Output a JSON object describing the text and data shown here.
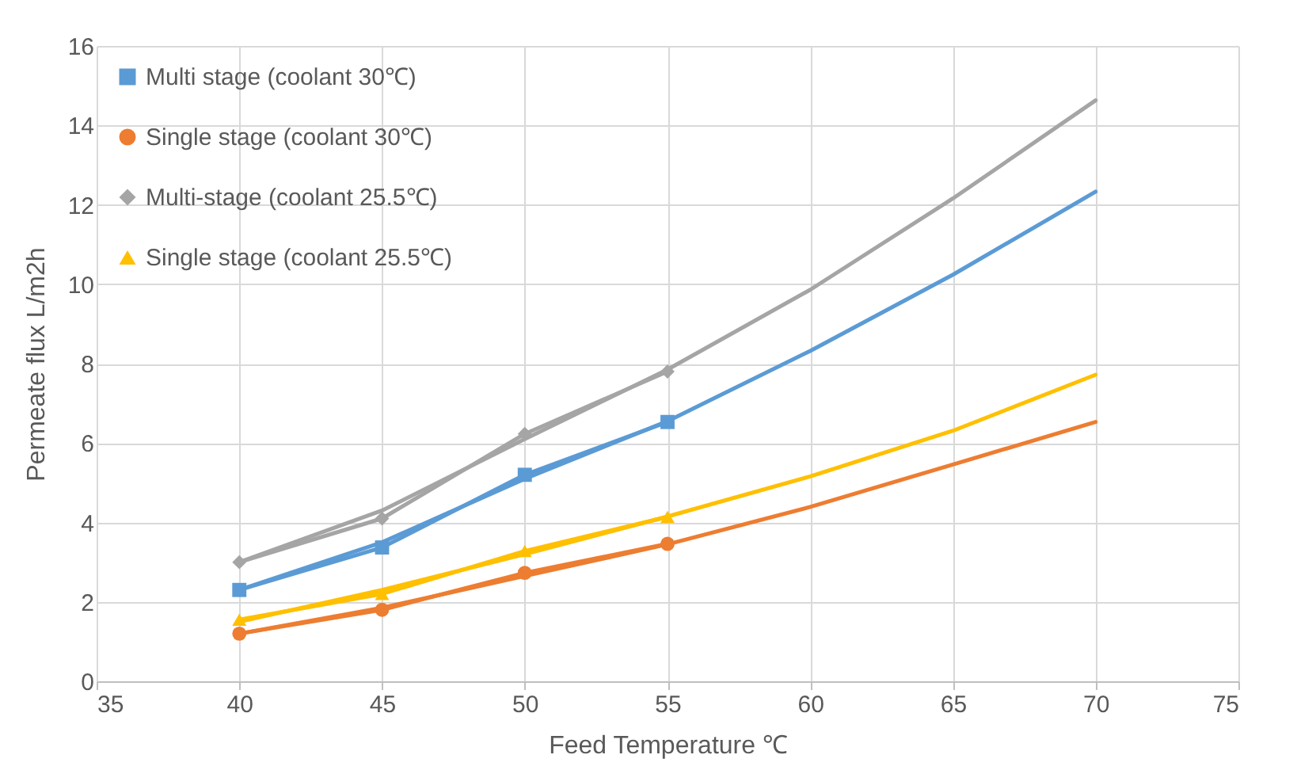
{
  "chart_data": {
    "type": "line",
    "xlabel": "Feed Temperature ℃",
    "ylabel": "Permeate flux L/m2h",
    "xlim": [
      35,
      75
    ],
    "xticks": [
      35,
      40,
      45,
      50,
      55,
      60,
      65,
      70,
      75
    ],
    "ylim": [
      0,
      16
    ],
    "yticks": [
      0,
      2,
      4,
      6,
      8,
      10,
      12,
      14,
      16
    ],
    "grid": true,
    "legend": "top left",
    "line_style": "solid",
    "series": [
      {
        "name": "Multi stage (coolant 30℃)",
        "color": "#5b9bd5",
        "marker": "square",
        "x": [
          40,
          45,
          50,
          55
        ],
        "values": [
          2.3,
          3.37,
          5.2,
          6.53
        ]
      },
      {
        "name": "Single stage (coolant 30℃)",
        "color": "#ed7d31",
        "marker": "circle",
        "x": [
          40,
          45,
          50,
          55
        ],
        "values": [
          1.2,
          1.8,
          2.73,
          3.46
        ]
      },
      {
        "name": "Multi-stage (coolant 25.5℃)",
        "color": "#a5a5a5",
        "marker": "diamond",
        "x": [
          40,
          45,
          50,
          55
        ],
        "values": [
          3.0,
          4.1,
          6.23,
          7.8
        ]
      },
      {
        "name": "Single stage (coolant 25.5℃)",
        "color": "#ffc000",
        "marker": "triangle",
        "x": [
          40,
          45,
          50,
          55
        ],
        "values": [
          1.55,
          2.2,
          3.28,
          4.14
        ]
      },
      {
        "color": "#5b9bd5",
        "marker": "none",
        "x": [
          40,
          45,
          50,
          55,
          60,
          65,
          70
        ],
        "values": [
          2.3,
          3.5,
          5.1,
          6.55,
          8.32,
          10.24,
          12.33
        ]
      },
      {
        "color": "#ed7d31",
        "marker": "none",
        "x": [
          40,
          45,
          50,
          55,
          60,
          65,
          70
        ],
        "values": [
          1.2,
          1.85,
          2.65,
          3.45,
          4.39,
          5.46,
          6.53
        ]
      },
      {
        "color": "#a5a5a5",
        "marker": "none",
        "x": [
          40,
          45,
          50,
          55,
          60,
          65,
          70
        ],
        "values": [
          3.0,
          4.3,
          6.1,
          7.85,
          9.86,
          12.16,
          14.63
        ]
      },
      {
        "color": "#ffc000",
        "marker": "none",
        "x": [
          40,
          45,
          50,
          55,
          60,
          65,
          70
        ],
        "values": [
          1.5,
          2.3,
          3.2,
          4.15,
          5.16,
          6.31,
          7.72
        ]
      }
    ]
  }
}
